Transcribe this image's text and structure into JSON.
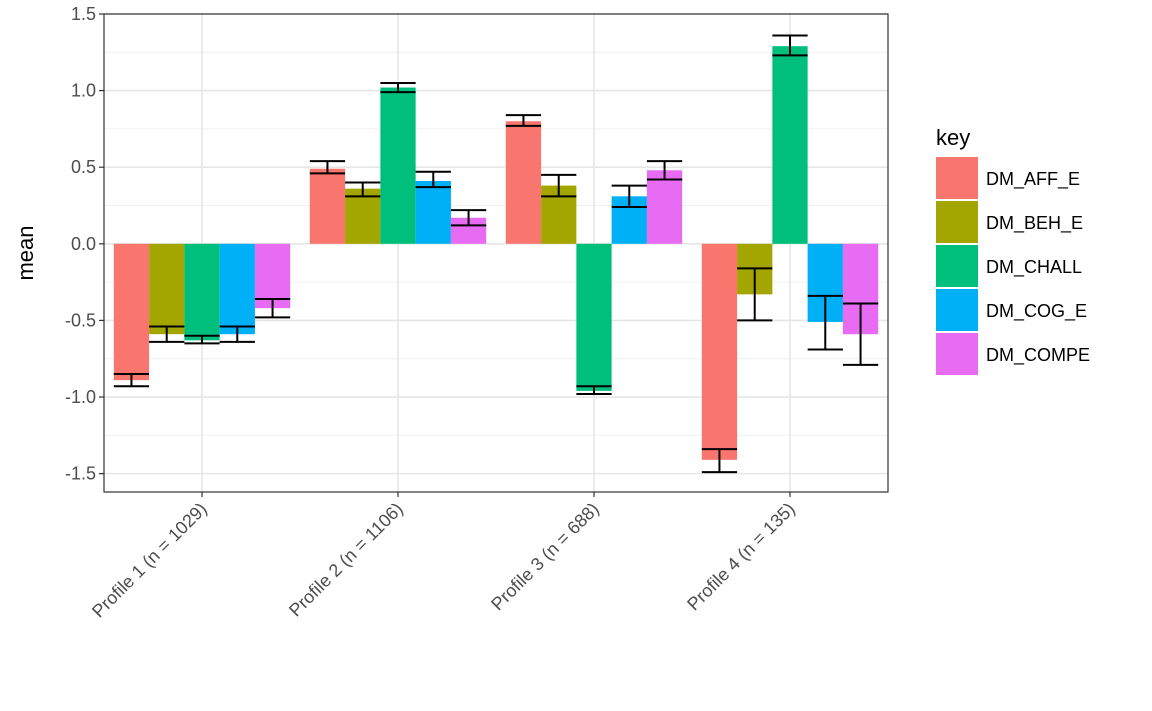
{
  "chart_data": {
    "type": "bar",
    "categories": [
      "Profile 1 (n = 1029)",
      "Profile 2 (n = 1106)",
      "Profile 3 (n = 688)",
      "Profile 4 (n = 135)"
    ],
    "ylabel": "mean",
    "xlabel": "",
    "ylim": [
      -1.62,
      1.5
    ],
    "yticks": [
      1.5,
      1.0,
      0.5,
      0.0,
      -0.5,
      -1.0,
      -1.5
    ],
    "ytick_labels": [
      "1.5",
      "1.0",
      "0.5",
      "0.0",
      "-0.5",
      "-1.0",
      "-1.5"
    ],
    "grid": true,
    "legend": {
      "title": "key",
      "position": "right"
    },
    "series": [
      {
        "name": "DM_AFF_E",
        "color": "#F8766D",
        "values": [
          -0.89,
          0.49,
          0.8,
          -1.41
        ],
        "err_low": [
          -0.93,
          0.46,
          0.77,
          -1.49
        ],
        "err_high": [
          -0.85,
          0.54,
          0.84,
          -1.34
        ]
      },
      {
        "name": "DM_BEH_E",
        "color": "#A3A500",
        "values": [
          -0.59,
          0.36,
          0.38,
          -0.33
        ],
        "err_low": [
          -0.64,
          0.31,
          0.31,
          -0.5
        ],
        "err_high": [
          -0.54,
          0.4,
          0.45,
          -0.16
        ]
      },
      {
        "name": "DM_CHALL",
        "color": "#00BF7D",
        "values": [
          -0.63,
          1.02,
          -0.96,
          1.29
        ],
        "err_low": [
          -0.65,
          0.99,
          -0.98,
          1.23
        ],
        "err_high": [
          -0.6,
          1.05,
          -0.93,
          1.36
        ]
      },
      {
        "name": "DM_COG_E",
        "color": "#00B0F6",
        "values": [
          -0.59,
          0.41,
          0.31,
          -0.51
        ],
        "err_low": [
          -0.64,
          0.37,
          0.24,
          -0.69
        ],
        "err_high": [
          -0.54,
          0.47,
          0.38,
          -0.34
        ]
      },
      {
        "name": "DM_COMPE",
        "color": "#E76BF3",
        "values": [
          -0.42,
          0.17,
          0.48,
          -0.59
        ],
        "err_low": [
          -0.48,
          0.12,
          0.42,
          -0.79
        ],
        "err_high": [
          -0.36,
          0.22,
          0.54,
          -0.39
        ]
      }
    ]
  }
}
